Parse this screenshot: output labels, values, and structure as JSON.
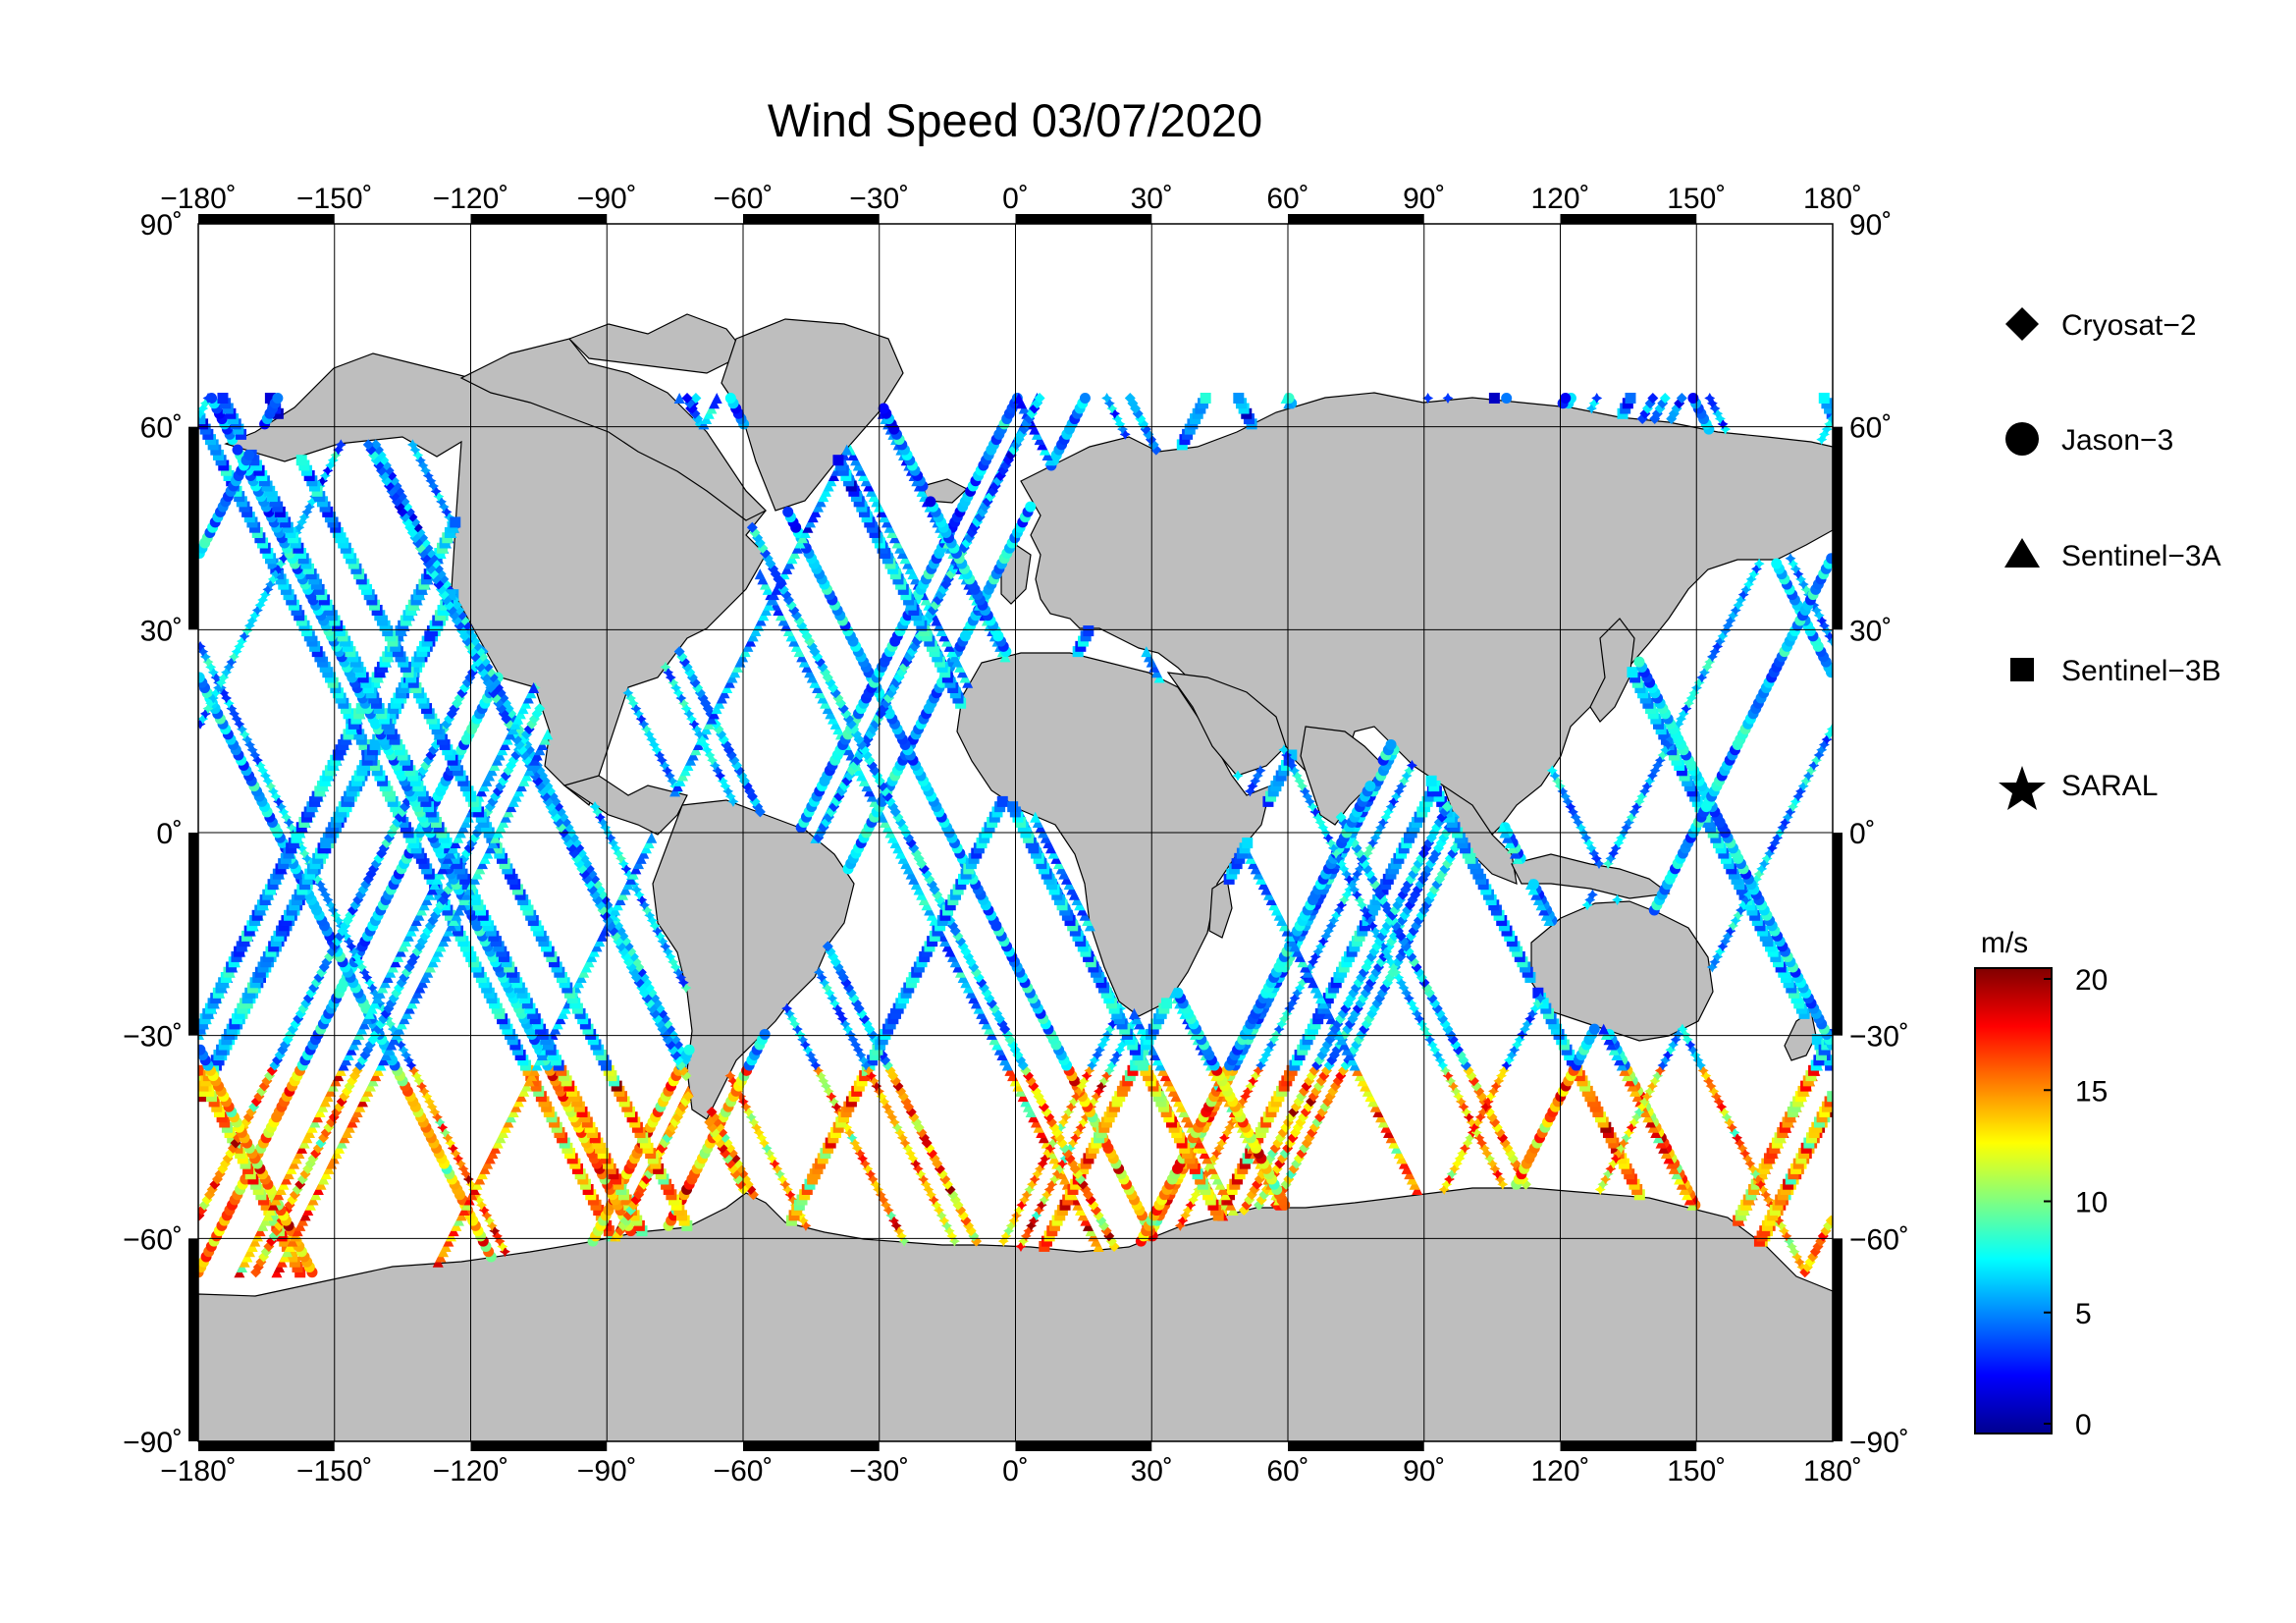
{
  "title": "Wind Speed 03/07/2020",
  "map": {
    "projection": "equirectangular",
    "lon_range": [
      -180,
      180
    ],
    "lat_range": [
      -90,
      90
    ],
    "graticule_lon": [
      -150,
      -120,
      -90,
      -60,
      -30,
      0,
      30,
      60,
      90,
      120,
      150
    ],
    "graticule_lat": [
      -60,
      -30,
      0,
      30,
      60
    ],
    "land_color": "#bebebe",
    "ocean_color": "#ffffff",
    "x_tick_labels": [
      "−180˚",
      "−150˚",
      "−120˚",
      "−90˚",
      "−60˚",
      "−30˚",
      "0˚",
      "30˚",
      "60˚",
      "90˚",
      "120˚",
      "150˚",
      "180˚"
    ],
    "y_tick_labels": [
      "−90˚",
      "−60˚",
      "−30˚",
      "0˚",
      "30˚",
      "60˚",
      "90˚"
    ],
    "y_tick_labels_right": [
      "−90˚",
      "−60˚",
      "−30˚",
      "0˚",
      "30˚",
      "60˚",
      "90˚"
    ]
  },
  "legend": {
    "items": [
      {
        "label": "Cryosat−2",
        "marker": "diamond"
      },
      {
        "label": "Jason−3",
        "marker": "circle"
      },
      {
        "label": "Sentinel−3A",
        "marker": "triangle"
      },
      {
        "label": "Sentinel−3B",
        "marker": "square"
      },
      {
        "label": "SARAL",
        "marker": "star"
      }
    ]
  },
  "colorbar": {
    "unit": "m/s",
    "min": 0,
    "max": 20,
    "tick_labels": [
      "20",
      "15",
      "10",
      "5",
      "0"
    ],
    "colormap": "jet"
  },
  "chart_data": {
    "type": "scatter",
    "title": "Wind Speed 03/07/2020",
    "x_axis": "longitude (degrees)",
    "y_axis": "latitude (degrees)",
    "xlim": [
      -180,
      180
    ],
    "ylim": [
      -90,
      90
    ],
    "color_variable": "wind speed (m/s)",
    "color_range": [
      0,
      20
    ],
    "series": [
      {
        "name": "Cryosat−2",
        "marker": "diamond"
      },
      {
        "name": "Jason−3",
        "marker": "circle"
      },
      {
        "name": "Sentinel−3A",
        "marker": "triangle"
      },
      {
        "name": "Sentinel−3B",
        "marker": "square"
      },
      {
        "name": "SARAL",
        "marker": "star"
      }
    ]
  }
}
